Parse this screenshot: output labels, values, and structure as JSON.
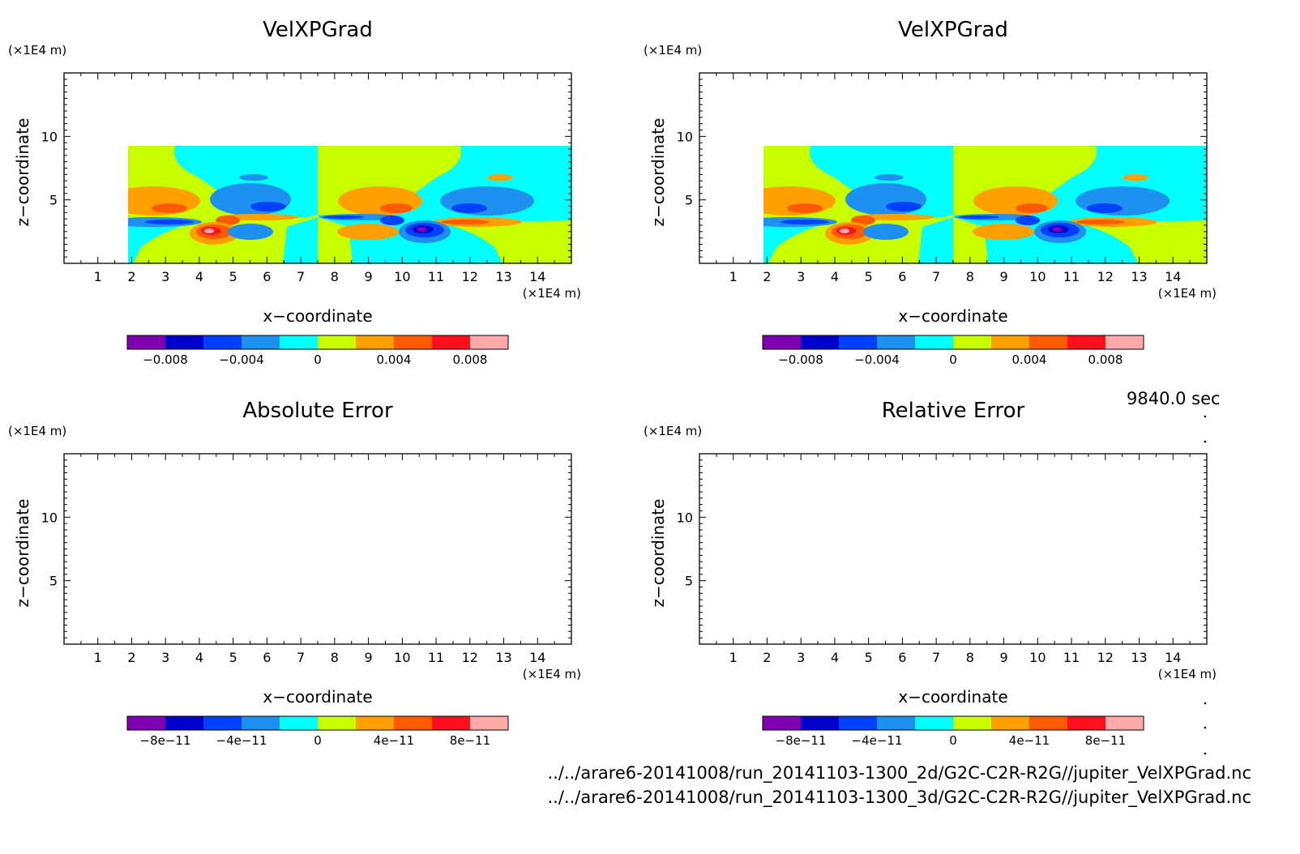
{
  "time_label": "9840.0 sec",
  "files": [
    "../../arare6-20141008/run_20141103-1300_2d/G2C-C2R-R2G//jupiter_VelXPGrad.nc",
    "../../arare6-20141008/run_20141103-1300_3d/G2C-C2R-R2G//jupiter_VelXPGrad.nc"
  ],
  "colormap": [
    "#7f00b0",
    "#0000cc",
    "#0040ff",
    "#1e90f0",
    "#00ffff",
    "#c8ff00",
    "#ffa000",
    "#ff5a00",
    "#ff0f1e",
    "#ffaaaa"
  ],
  "chart_data": [
    {
      "type": "heatmap",
      "title": "VelXPGrad",
      "xlabel": "x−coordinate",
      "ylabel": "z−coordinate",
      "xunit": "(×1E4 m)",
      "yunit": "(×1E4 m)",
      "xlim": [
        0,
        15
      ],
      "ylim": [
        0,
        15
      ],
      "xticks": [
        "1",
        "2",
        "3",
        "4",
        "5",
        "6",
        "7",
        "8",
        "9",
        "10",
        "11",
        "12",
        "13",
        "14"
      ],
      "yticks": [
        "5",
        "10"
      ],
      "colorbar_ticks": [
        "−0.008",
        "−0.004",
        "0",
        "0.004",
        "0.008"
      ],
      "colorbar_range": [
        -0.01,
        0.01
      ],
      "field": "filled"
    },
    {
      "type": "heatmap",
      "title": "VelXPGrad",
      "xlabel": "x−coordinate",
      "ylabel": "z−coordinate",
      "xunit": "(×1E4 m)",
      "yunit": "(×1E4 m)",
      "xlim": [
        0,
        15
      ],
      "ylim": [
        0,
        15
      ],
      "xticks": [
        "1",
        "2",
        "3",
        "4",
        "5",
        "6",
        "7",
        "8",
        "9",
        "10",
        "11",
        "12",
        "13",
        "14"
      ],
      "yticks": [
        "5",
        "10"
      ],
      "colorbar_ticks": [
        "−0.008",
        "−0.004",
        "0",
        "0.004",
        "0.008"
      ],
      "colorbar_range": [
        -0.01,
        0.01
      ],
      "field": "filled"
    },
    {
      "type": "heatmap",
      "title": "Absolute Error",
      "xlabel": "x−coordinate",
      "ylabel": "z−coordinate",
      "xunit": "(×1E4 m)",
      "yunit": "(×1E4 m)",
      "xlim": [
        0,
        15
      ],
      "ylim": [
        0,
        15
      ],
      "xticks": [
        "1",
        "2",
        "3",
        "4",
        "5",
        "6",
        "7",
        "8",
        "9",
        "10",
        "11",
        "12",
        "13",
        "14"
      ],
      "yticks": [
        "5",
        "10"
      ],
      "colorbar_ticks": [
        "−8e−11",
        "−4e−11",
        "0",
        "4e−11",
        "8e−11"
      ],
      "colorbar_range": [
        -1e-10,
        1e-10
      ],
      "field": "empty"
    },
    {
      "type": "heatmap",
      "title": "Relative Error",
      "xlabel": "x−coordinate",
      "ylabel": "z−coordinate",
      "xunit": "(×1E4 m)",
      "yunit": "(×1E4 m)",
      "xlim": [
        0,
        15
      ],
      "ylim": [
        0,
        15
      ],
      "xticks": [
        "1",
        "2",
        "3",
        "4",
        "5",
        "6",
        "7",
        "8",
        "9",
        "10",
        "11",
        "12",
        "13",
        "14"
      ],
      "yticks": [
        "5",
        "10"
      ],
      "colorbar_ticks": [
        "−8e−11",
        "−4e−11",
        "0",
        "4e−11",
        "8e−11"
      ],
      "colorbar_range": [
        -1e-10,
        1e-10
      ],
      "field": "empty"
    }
  ]
}
